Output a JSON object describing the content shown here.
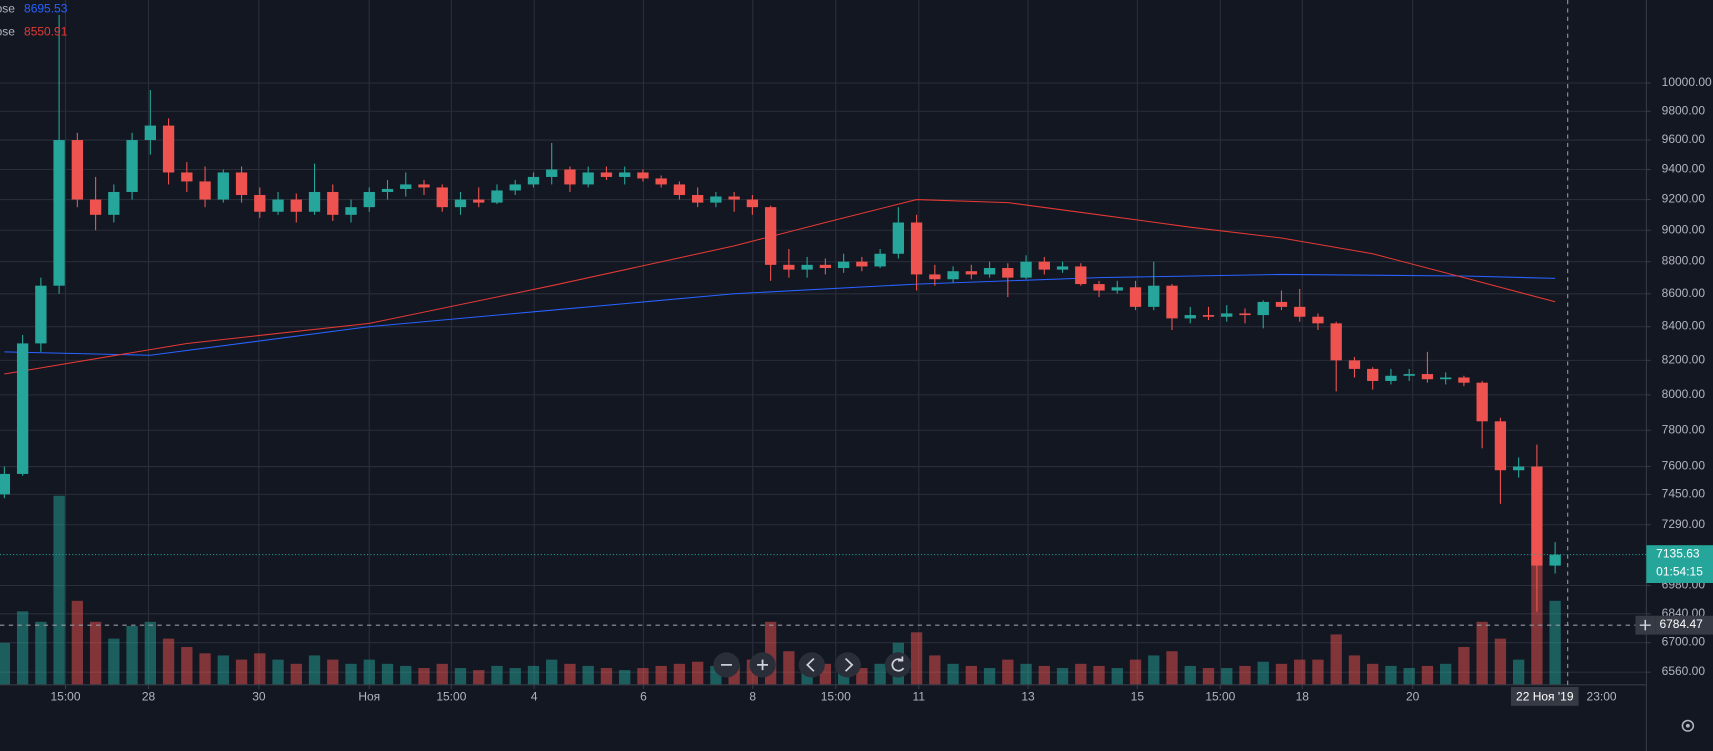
{
  "chart_data": {
    "type": "candlestick",
    "log_scale": true,
    "grid": true,
    "up_color": "#26a69a",
    "down_color": "#ef5350",
    "ylim": [
      6501,
      10612
    ],
    "yticks": [
      {
        "value": 10000,
        "label": "10000.00"
      },
      {
        "value": 9800,
        "label": "9800.00"
      },
      {
        "value": 9600,
        "label": "9600.00"
      },
      {
        "value": 9400,
        "label": "9400.00"
      },
      {
        "value": 9200,
        "label": "9200.00"
      },
      {
        "value": 9000,
        "label": "9000.00"
      },
      {
        "value": 8800,
        "label": "8800.00"
      },
      {
        "value": 8600,
        "label": "8600.00"
      },
      {
        "value": 8400,
        "label": "8400.00"
      },
      {
        "value": 8200,
        "label": "8200.00"
      },
      {
        "value": 8000,
        "label": "8000.00"
      },
      {
        "value": 7800,
        "label": "7800.00"
      },
      {
        "value": 7600,
        "label": "7600.00"
      },
      {
        "value": 7450,
        "label": "7450.00"
      },
      {
        "value": 7290,
        "label": "7290.00"
      },
      {
        "value": 6980,
        "label": "6980.00"
      },
      {
        "value": 6840,
        "label": "6840.00"
      },
      {
        "value": 6700,
        "label": "6700.00"
      },
      {
        "value": 6560,
        "label": "6560.00"
      }
    ],
    "xlim": [
      -0.24,
      90
    ],
    "xticks": [
      {
        "value": 3.35,
        "label": "15:00"
      },
      {
        "value": 7.9,
        "label": "28"
      },
      {
        "value": 13.95,
        "label": "30"
      },
      {
        "value": 20.0,
        "label": "Ноя"
      },
      {
        "value": 24.5,
        "label": "15:00"
      },
      {
        "value": 29.04,
        "label": "4"
      },
      {
        "value": 35.03,
        "label": "6"
      },
      {
        "value": 41.02,
        "label": "8"
      },
      {
        "value": 45.57,
        "label": "15:00"
      },
      {
        "value": 50.12,
        "label": "11"
      },
      {
        "value": 56.11,
        "label": "13"
      },
      {
        "value": 62.1,
        "label": "15"
      },
      {
        "value": 66.65,
        "label": "15:00"
      },
      {
        "value": 71.14,
        "label": "18"
      },
      {
        "value": 77.19,
        "label": "20"
      }
    ],
    "candles": {
      "open": [
        7450,
        7560,
        8300,
        8650,
        9600,
        9200,
        9100,
        9250,
        9600,
        9700,
        9380,
        9320,
        9200,
        9380,
        9230,
        9120,
        9200,
        9120,
        9250,
        9100,
        9150,
        9250,
        9270,
        9300,
        9280,
        9150,
        9200,
        9180,
        9260,
        9300,
        9350,
        9400,
        9300,
        9380,
        9350,
        9380,
        9340,
        9300,
        9230,
        9180,
        9220,
        9200,
        9150,
        8780,
        8750,
        8780,
        8760,
        8800,
        8770,
        8850,
        9050,
        8720,
        8690,
        8740,
        8720,
        8760,
        8700,
        8800,
        8750,
        8770,
        8660,
        8620,
        8640,
        8520,
        8650,
        8450,
        8470,
        8460,
        8480,
        8470,
        8550,
        8520,
        8460,
        8420,
        8200,
        8150,
        8080,
        8110,
        8120,
        8090,
        8100,
        8070,
        7850,
        7580,
        7600,
        7080
      ],
      "high": [
        7600,
        8350,
        8700,
        10500,
        9650,
        9350,
        9300,
        9650,
        9950,
        9750,
        9450,
        9420,
        9400,
        9420,
        9280,
        9250,
        9240,
        9440,
        9300,
        9200,
        9280,
        9330,
        9380,
        9330,
        9300,
        9250,
        9280,
        9300,
        9330,
        9380,
        9580,
        9420,
        9420,
        9420,
        9420,
        9400,
        9360,
        9320,
        9280,
        9250,
        9250,
        9230,
        9160,
        8880,
        8830,
        8820,
        8850,
        8830,
        8880,
        9150,
        9100,
        8780,
        8770,
        8780,
        8800,
        8790,
        8840,
        8830,
        8800,
        8790,
        8680,
        8680,
        8680,
        8800,
        8660,
        8520,
        8520,
        8530,
        8510,
        8560,
        8620,
        8630,
        8480,
        8430,
        8220,
        8160,
        8150,
        8150,
        8250,
        8130,
        8110,
        8080,
        7870,
        7650,
        7720,
        7200
      ],
      "low": [
        7430,
        7550,
        8250,
        8600,
        9150,
        9000,
        9050,
        9200,
        9500,
        9300,
        9250,
        9150,
        9180,
        9180,
        9080,
        9100,
        9050,
        9100,
        9060,
        9050,
        9120,
        9200,
        9220,
        9230,
        9120,
        9100,
        9150,
        9170,
        9230,
        9280,
        9300,
        9250,
        9280,
        9330,
        9300,
        9320,
        9280,
        9200,
        9150,
        9150,
        9120,
        9100,
        8680,
        8700,
        8700,
        8720,
        8730,
        8740,
        8760,
        8820,
        8620,
        8650,
        8670,
        8690,
        8700,
        8580,
        8690,
        8720,
        8730,
        8650,
        8580,
        8600,
        8500,
        8500,
        8380,
        8420,
        8440,
        8430,
        8420,
        8390,
        8500,
        8430,
        8380,
        8020,
        8100,
        8030,
        8060,
        8080,
        8070,
        8060,
        8050,
        7700,
        7400,
        7540,
        6850,
        7040
      ],
      "close": [
        7560,
        8300,
        8650,
        9600,
        9200,
        9100,
        9250,
        9600,
        9700,
        9380,
        9320,
        9200,
        9380,
        9230,
        9120,
        9200,
        9120,
        9250,
        9100,
        9150,
        9250,
        9270,
        9300,
        9280,
        9150,
        9200,
        9180,
        9260,
        9300,
        9350,
        9400,
        9300,
        9380,
        9350,
        9380,
        9340,
        9300,
        9230,
        9180,
        9220,
        9200,
        9150,
        8780,
        8750,
        8780,
        8760,
        8800,
        8770,
        8850,
        9050,
        8720,
        8690,
        8740,
        8720,
        8760,
        8700,
        8800,
        8750,
        8770,
        8660,
        8620,
        8640,
        8520,
        8650,
        8450,
        8470,
        8460,
        8480,
        8470,
        8550,
        8520,
        8460,
        8420,
        8200,
        8150,
        8080,
        8110,
        8120,
        8090,
        8100,
        8070,
        7850,
        7580,
        7600,
        7080,
        7135.63
      ],
      "volume": [
        20,
        35,
        30,
        90,
        40,
        30,
        22,
        28,
        30,
        22,
        18,
        15,
        14,
        12,
        15,
        12,
        10,
        14,
        12,
        10,
        12,
        10,
        9,
        8,
        10,
        8,
        7,
        9,
        8,
        9,
        12,
        10,
        9,
        8,
        7,
        8,
        9,
        10,
        11,
        9,
        10,
        12,
        30,
        16,
        12,
        10,
        9,
        8,
        10,
        20,
        25,
        14,
        10,
        9,
        8,
        12,
        10,
        9,
        8,
        10,
        9,
        8,
        12,
        14,
        16,
        9,
        8,
        8,
        9,
        11,
        10,
        12,
        12,
        24,
        14,
        10,
        9,
        8,
        9,
        10,
        18,
        30,
        22,
        12,
        60,
        40
      ]
    },
    "indicators": [
      {
        "name": "ose",
        "color": "#2962ff",
        "x": [
          0,
          8,
          20,
          30,
          40,
          50,
          60,
          70,
          80,
          85
        ],
        "values": [
          8250,
          8230,
          8400,
          8500,
          8600,
          8660,
          8700,
          8720,
          8710,
          8695.53
        ]
      },
      {
        "name": "ose",
        "color": "#e53935",
        "x": [
          0,
          10,
          20,
          30,
          40,
          45,
          50,
          55,
          60,
          65,
          70,
          75,
          80,
          85
        ],
        "values": [
          8120,
          8300,
          8420,
          8650,
          8900,
          9050,
          9200,
          9180,
          9100,
          9020,
          8950,
          8850,
          8700,
          8550.91
        ]
      }
    ],
    "countdown": "01:54:15",
    "crosshair_price": 6784.47,
    "crosshair_date": "22 Ноя '19",
    "crosshair_time": "23:00"
  }
}
